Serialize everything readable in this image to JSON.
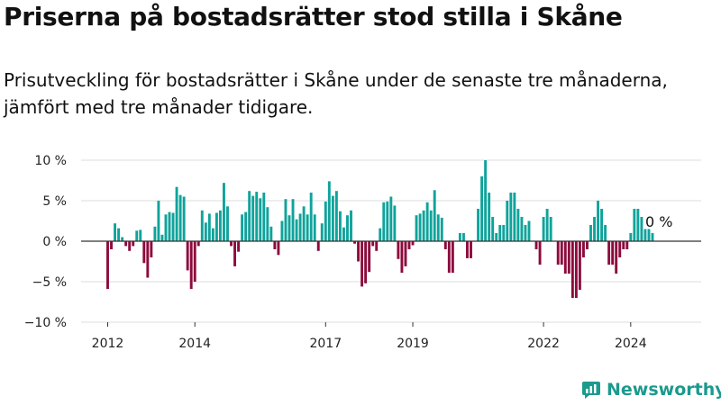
{
  "title": "Priserna på bostadsrätter stod stilla i Skåne",
  "subtitle": "Prisutveckling för bostadsrätter i Skåne under de senaste tre månaderna, jämfört med tre månader tidigare.",
  "brand": {
    "name": "Newsworthy",
    "icon": "newsworthy-logo-icon",
    "color": "#1b9a8e"
  },
  "chart_data": {
    "type": "bar",
    "title": "Priserna på bostadsrätter stod stilla i Skåne",
    "subtitle": "Prisutveckling för bostadsrätter i Skåne under de senaste tre månaderna, jämfört med tre månader tidigare.",
    "xlabel": "",
    "ylabel": "",
    "unit": "%",
    "x_start": "2012-01",
    "frequency": "monthly",
    "ylim": [
      -10,
      10
    ],
    "yticks": [
      {
        "value": 10,
        "label": "10 %"
      },
      {
        "value": 5,
        "label": "5 %"
      },
      {
        "value": 0,
        "label": "0 %"
      },
      {
        "value": -5,
        "label": "−5 %"
      },
      {
        "value": -10,
        "label": "−10 %"
      }
    ],
    "xticks": [
      {
        "date": "2012-01",
        "label": "2012"
      },
      {
        "date": "2014-01",
        "label": "2014"
      },
      {
        "date": "2017-01",
        "label": "2017"
      },
      {
        "date": "2019-01",
        "label": "2019"
      },
      {
        "date": "2022-01",
        "label": "2022"
      },
      {
        "date": "2024-01",
        "label": "2024"
      }
    ],
    "grid": true,
    "positive_color": "#0fa39b",
    "negative_color": "#8c0a3c",
    "end_label": "0 %",
    "series": [
      {
        "values": [
          -5.9,
          -1,
          2.2,
          1.6,
          0.5,
          -0.6,
          -1.2,
          -0.6,
          1.3,
          1.4,
          -2.7,
          -4.5,
          -2,
          1.8,
          5,
          0.8,
          3.3,
          3.6,
          3.5,
          6.7,
          5.7,
          5.5,
          -3.6,
          -5.9,
          -5,
          -0.6,
          3.8,
          2.3,
          3.4,
          1.6,
          3.5,
          3.8,
          7.2,
          4.3,
          -0.6,
          -3.1,
          -1.3,
          3.3,
          3.6,
          6.2,
          5.6,
          6.1,
          5.3,
          6,
          4.2,
          1.8,
          -1,
          -1.7,
          2.5,
          5.2,
          3.2,
          5.2,
          2.7,
          3.4,
          4.3,
          3.3,
          6,
          3.3,
          -1.2,
          2.2,
          4.9,
          7.4,
          5.6,
          6.2,
          3.7,
          1.7,
          3.2,
          3.8,
          -0.3,
          -2.5,
          -5.6,
          -5.2,
          -3.8,
          -0.6,
          -1.2,
          1.6,
          4.8,
          4.9,
          5.5,
          4.4,
          -2.2,
          -3.9,
          -3.1,
          -1,
          -0.5,
          3.2,
          3.4,
          3.8,
          4.8,
          3.8,
          6.3,
          3.3,
          2.9,
          -1,
          -3.9,
          -3.9,
          0,
          1,
          1,
          -2.1,
          -2.1,
          0,
          4,
          8,
          10,
          6,
          3,
          1,
          2,
          2,
          5,
          6,
          6,
          4,
          3,
          2,
          2.5,
          0,
          -1,
          -2.9,
          3,
          4,
          3,
          0,
          -2.9,
          -2.9,
          -4,
          -4,
          -7,
          -7,
          -6,
          -2,
          -1,
          2,
          3,
          5,
          4,
          2,
          -2.9,
          -2.9,
          -4,
          -2,
          -1,
          -1,
          1,
          4,
          4,
          3,
          1.5,
          1.5,
          1,
          0
        ]
      }
    ]
  }
}
